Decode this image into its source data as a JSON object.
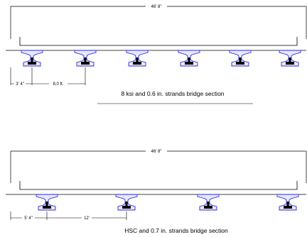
{
  "diagrams": [
    {
      "caption": "8 ksi and 0.6 in. strands bridge section",
      "deck_width_label": "46' 8\"",
      "overhang_label": "3' 4\"",
      "spacing_label": "8.0 ft.",
      "girder_count": 6,
      "colors": {
        "girder": "#2a2ad0",
        "line": "#000000",
        "strand": "#000000"
      }
    },
    {
      "caption": "HSC and 0.7 in. strands bridge section",
      "deck_width_label": "46' 8\"",
      "overhang_label": "5' 4\"",
      "spacing_label": "12'",
      "girder_count": 4,
      "colors": {
        "girder": "#2a2ad0",
        "line": "#000000",
        "strand": "#000000"
      }
    }
  ]
}
